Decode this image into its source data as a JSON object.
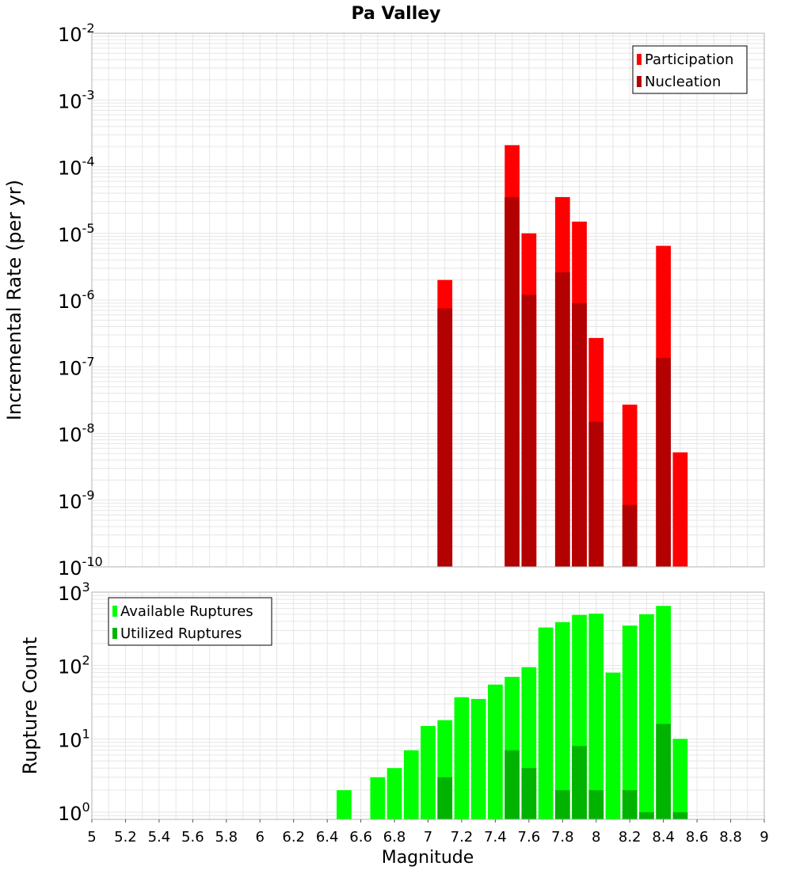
{
  "colors": {
    "participation": "#ff0000",
    "nucleation": "#b30000",
    "available": "#00ff00",
    "utilized": "#00b300",
    "grid": "#e6e6e6",
    "frame": "#b3b3b3"
  },
  "chart_data": [
    {
      "type": "bar",
      "title": "Pa Valley",
      "xlabel": "",
      "ylabel": "Incremental Rate (per yr)",
      "yscale": "log",
      "xlim": [
        5,
        9
      ],
      "ylim": [
        1e-10,
        0.01
      ],
      "grid": true,
      "legend_position": "top-right",
      "y_ticks": [
        {
          "value": 1e-10,
          "base": "10",
          "exp": "-10"
        },
        {
          "value": 1e-09,
          "base": "10",
          "exp": "-9"
        },
        {
          "value": 1e-08,
          "base": "10",
          "exp": "-8"
        },
        {
          "value": 1e-07,
          "base": "10",
          "exp": "-7"
        },
        {
          "value": 1e-06,
          "base": "10",
          "exp": "-6"
        },
        {
          "value": 1e-05,
          "base": "10",
          "exp": "-5"
        },
        {
          "value": 0.0001,
          "base": "10",
          "exp": "-4"
        },
        {
          "value": 0.001,
          "base": "10",
          "exp": "-3"
        },
        {
          "value": 0.01,
          "base": "10",
          "exp": "-2"
        }
      ],
      "series": [
        {
          "name": "Participation",
          "color": "#ff0000",
          "x": [
            7.1,
            7.5,
            7.6,
            7.8,
            7.9,
            8.0,
            8.2,
            8.4,
            8.5
          ],
          "values": [
            2e-06,
            0.00021,
            1e-05,
            3.5e-05,
            1.5e-05,
            2.7e-07,
            2.7e-08,
            6.5e-06,
            5.2e-09
          ]
        },
        {
          "name": "Nucleation",
          "color": "#b30000",
          "x": [
            7.1,
            7.5,
            7.6,
            7.8,
            7.9,
            8.0,
            8.2,
            8.4
          ],
          "values": [
            7.5e-07,
            3.5e-05,
            1.2e-06,
            2.6e-06,
            9e-07,
            1.5e-08,
            8.5e-10,
            1.35e-07
          ]
        }
      ]
    },
    {
      "type": "bar",
      "title": "",
      "xlabel": "Magnitude",
      "ylabel": "Rupture Count",
      "yscale": "log",
      "xlim": [
        5,
        9
      ],
      "ylim": [
        0.8,
        1000
      ],
      "grid": true,
      "legend_position": "top-left",
      "x_ticks": [
        "5",
        "5.2",
        "5.4",
        "5.6",
        "5.8",
        "6",
        "6.2",
        "6.4",
        "6.6",
        "6.8",
        "7",
        "7.2",
        "7.4",
        "7.6",
        "7.8",
        "8",
        "8.2",
        "8.4",
        "8.6",
        "8.8",
        "9"
      ],
      "y_ticks": [
        {
          "value": 1,
          "base": "10",
          "exp": "0"
        },
        {
          "value": 10,
          "base": "10",
          "exp": "1"
        },
        {
          "value": 100,
          "base": "10",
          "exp": "2"
        },
        {
          "value": 1000,
          "base": "10",
          "exp": "3"
        }
      ],
      "series": [
        {
          "name": "Available Ruptures",
          "color": "#00ff00",
          "x": [
            6.5,
            6.7,
            6.8,
            6.9,
            7.0,
            7.1,
            7.2,
            7.3,
            7.4,
            7.5,
            7.6,
            7.7,
            7.8,
            7.9,
            8.0,
            8.1,
            8.2,
            8.3,
            8.4,
            8.5
          ],
          "values": [
            2,
            3,
            4,
            7,
            15,
            18,
            37,
            35,
            55,
            70,
            95,
            330,
            390,
            490,
            510,
            80,
            350,
            500,
            650,
            10
          ]
        },
        {
          "name": "Utilized Ruptures",
          "color": "#00b300",
          "x": [
            7.1,
            7.5,
            7.6,
            7.8,
            7.9,
            8.0,
            8.2,
            8.3,
            8.4,
            8.5
          ],
          "values": [
            3,
            7,
            4,
            2,
            8,
            2,
            2,
            1,
            16,
            1
          ]
        }
      ]
    }
  ]
}
